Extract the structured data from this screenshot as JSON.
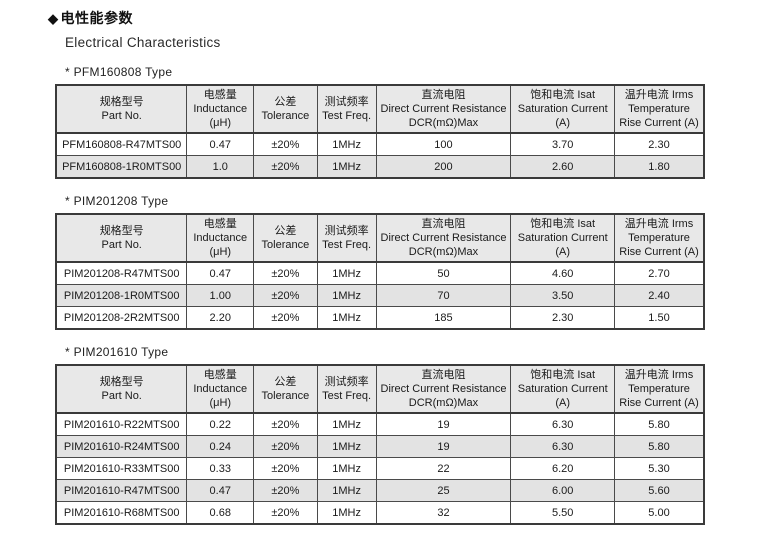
{
  "page": {
    "title_bullet": "◆",
    "title_zh": "电性能参数",
    "title_en": "Electrical Characteristics"
  },
  "table_columns": [
    {
      "id": "part_no",
      "lines": [
        "规格型号",
        "Part No."
      ]
    },
    {
      "id": "inductance",
      "lines": [
        "电感量",
        "Inductance",
        "(μH)"
      ]
    },
    {
      "id": "tolerance",
      "lines": [
        "公差",
        "Tolerance"
      ]
    },
    {
      "id": "test_freq",
      "lines": [
        "测试频率",
        "Test Freq."
      ]
    },
    {
      "id": "dcr",
      "lines": [
        "直流电阻",
        "Direct Current Resistance",
        "DCR(mΩ)Max"
      ]
    },
    {
      "id": "isat",
      "lines": [
        "饱和电流  Isat",
        "Saturation Current",
        "(A)"
      ]
    },
    {
      "id": "irms",
      "lines": [
        "温升电流  Irms",
        "Temperature",
        "Rise Current (A)"
      ]
    }
  ],
  "tables": [
    {
      "section_label": "*  PFM160808 Type",
      "rows": [
        [
          "PFM160808-R47MTS00",
          "0.47",
          "±20%",
          "1MHz",
          "100",
          "3.70",
          "2.30"
        ],
        [
          "PFM160808-1R0MTS00",
          "1.0",
          "±20%",
          "1MHz",
          "200",
          "2.60",
          "1.80"
        ]
      ]
    },
    {
      "section_label": "*  PIM201208 Type",
      "rows": [
        [
          "PIM201208-R47MTS00",
          "0.47",
          "±20%",
          "1MHz",
          "50",
          "4.60",
          "2.70"
        ],
        [
          "PIM201208-1R0MTS00",
          "1.00",
          "±20%",
          "1MHz",
          "70",
          "3.50",
          "2.40"
        ],
        [
          "PIM201208-2R2MTS00",
          "2.20",
          "±20%",
          "1MHz",
          "185",
          "2.30",
          "1.50"
        ]
      ]
    },
    {
      "section_label": "*  PIM201610 Type",
      "rows": [
        [
          "PIM201610-R22MTS00",
          "0.22",
          "±20%",
          "1MHz",
          "19",
          "6.30",
          "5.80"
        ],
        [
          "PIM201610-R24MTS00",
          "0.24",
          "±20%",
          "1MHz",
          "19",
          "6.30",
          "5.80"
        ],
        [
          "PIM201610-R33MTS00",
          "0.33",
          "±20%",
          "1MHz",
          "22",
          "6.20",
          "5.30"
        ],
        [
          "PIM201610-R47MTS00",
          "0.47",
          "±20%",
          "1MHz",
          "25",
          "6.00",
          "5.60"
        ],
        [
          "PIM201610-R68MTS00",
          "0.68",
          "±20%",
          "1MHz",
          "32",
          "5.50",
          "5.00"
        ]
      ]
    }
  ],
  "layout_hints": {
    "column_widths_pct": [
      20.2,
      10.3,
      9.8,
      9.1,
      20.8,
      16.0,
      13.8
    ]
  },
  "colors": {
    "header_bg": "#e8e8e8",
    "stripe_bg": "#e3e3e3",
    "border": "#4a4a4a",
    "outer_border": "#3a3a3a",
    "text": "#1a1a1a"
  }
}
